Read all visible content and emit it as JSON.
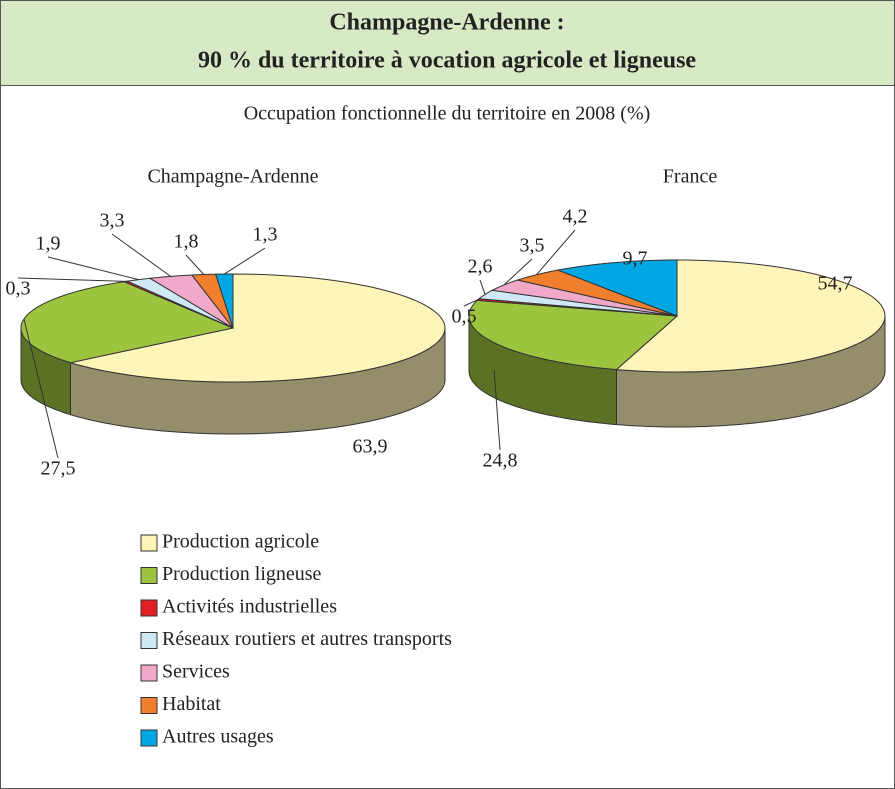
{
  "title": [
    "Champagne-Ardenne :",
    "90 % du territoire à vocation agricole et ligneuse"
  ],
  "subtitle": "Occupation fonctionnelle du territoire en 2008 (%)",
  "legend": {
    "categories": [
      "Production agricole",
      "Production ligneuse",
      "Activités industrielles",
      "Réseaux routiers et autres transports",
      "Services",
      "Habitat",
      "Autres usages"
    ],
    "colors": [
      "#fff5b8",
      "#9dc43f",
      "#e31e24",
      "#cfe8f5",
      "#f0a9c8",
      "#f07f2e",
      "#00a7e3"
    ]
  },
  "chart_data": [
    {
      "type": "pie",
      "title": "Champagne-Ardenne",
      "values": [
        63.9,
        27.5,
        0.3,
        1.9,
        3.3,
        1.8,
        1.3
      ],
      "value_labels": [
        "63,9",
        "27,5",
        "0,3",
        "1,9",
        "3,3",
        "1,8",
        "1,3"
      ]
    },
    {
      "type": "pie",
      "title": "France",
      "values": [
        54.7,
        24.8,
        0.5,
        2.6,
        3.5,
        4.2,
        9.7
      ],
      "value_labels": [
        "54,7",
        "24,8",
        "0,5",
        "2,6",
        "3,5",
        "4,2",
        "9,7"
      ]
    }
  ]
}
